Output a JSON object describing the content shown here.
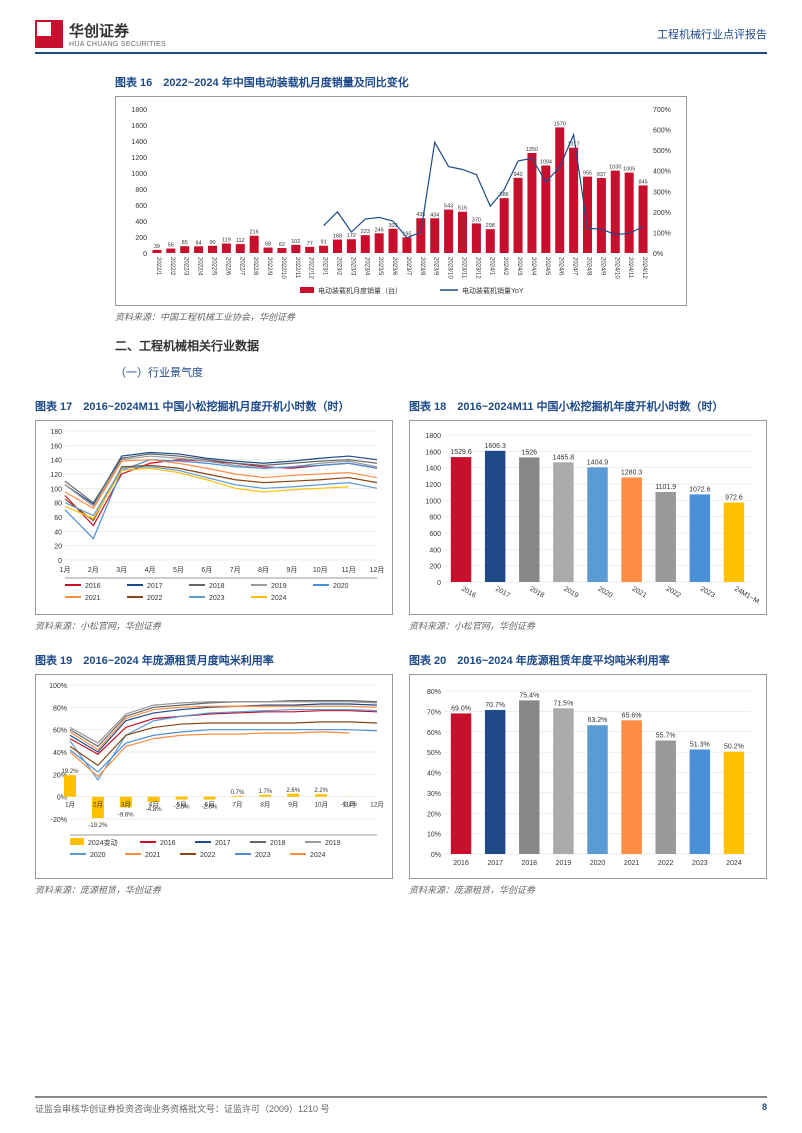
{
  "header": {
    "logo_cn": "华创证券",
    "logo_en": "HUA CHUANG SECURITIES",
    "right": "工程机械行业点评报告"
  },
  "chart16": {
    "title": "图表 16　2022~2024 年中国电动装载机月度销量及同比变化",
    "type": "bar+line",
    "categories": [
      "2022/1",
      "2022/2",
      "2022/3",
      "2022/4",
      "2022/5",
      "2022/6",
      "2022/7",
      "2022/8",
      "2022/9",
      "2022/10",
      "2022/11",
      "2022/12",
      "2023/1",
      "2023/2",
      "2023/3",
      "2023/4",
      "2023/5",
      "2023/6",
      "2023/7",
      "2023/8",
      "2023/9",
      "2023/10",
      "2023/11",
      "2023/12",
      "2024/1",
      "2024/2",
      "2024/3",
      "2024/4",
      "2024/5",
      "2024/6",
      "2024/7",
      "2024/8",
      "2024/9",
      "2024/10",
      "2024/11",
      "2024/12"
    ],
    "bars": [
      39,
      56,
      85,
      84,
      90,
      119,
      112,
      216,
      68,
      62,
      102,
      77,
      91,
      168,
      172,
      223,
      246,
      303,
      195,
      435,
      434,
      543,
      516,
      370,
      298,
      686,
      940,
      1250,
      1094,
      1570,
      1317,
      955,
      937,
      1030,
      1005,
      845
    ],
    "line": [
      0,
      0,
      0,
      0,
      0,
      0,
      0,
      0,
      0,
      0,
      0,
      0,
      133,
      200,
      102,
      165,
      173,
      155,
      74,
      101,
      538,
      420,
      406,
      381,
      227,
      308,
      447,
      461,
      345,
      418,
      575,
      120,
      116,
      90,
      95,
      128
    ],
    "bar_color": "#c8102e",
    "line_color": "#1e4a8a",
    "ylim_left": [
      0,
      1800
    ],
    "ytick_left": 200,
    "ylim_right": [
      0,
      700
    ],
    "ytick_right": 100,
    "legend": [
      "电动装载机月度销量（台）",
      "电动装载机销量YoY"
    ],
    "legend_colors": [
      "#c8102e",
      "#1e4a8a"
    ],
    "tick_fontsize": 6,
    "label_fontsize": 7,
    "source": "资料来源：中国工程机械工业协会，华创证券"
  },
  "section2": "二、工程机械相关行业数据",
  "subsection21": "（一）行业景气度",
  "chart17": {
    "title": "图表 17　2016~2024M11 中国小松挖掘机月度开机小时数（时）",
    "type": "line",
    "categories": [
      "1月",
      "2月",
      "3月",
      "4月",
      "5月",
      "6月",
      "7月",
      "8月",
      "9月",
      "10月",
      "11月",
      "12月"
    ],
    "series": {
      "2016": [
        90,
        48,
        120,
        135,
        140,
        138,
        135,
        130,
        128,
        132,
        135,
        128
      ],
      "2017": [
        105,
        78,
        145,
        150,
        148,
        142,
        138,
        135,
        138,
        142,
        145,
        140
      ],
      "2018": [
        110,
        80,
        142,
        148,
        145,
        140,
        135,
        132,
        135,
        138,
        140,
        135
      ],
      "2019": [
        105,
        75,
        140,
        145,
        142,
        138,
        132,
        128,
        130,
        135,
        138,
        130
      ],
      "2020": [
        70,
        30,
        125,
        140,
        138,
        135,
        130,
        128,
        130,
        132,
        135,
        128
      ],
      "2021": [
        95,
        72,
        138,
        140,
        135,
        128,
        120,
        115,
        118,
        120,
        122,
        115
      ],
      "2022": [
        85,
        55,
        130,
        132,
        128,
        120,
        112,
        108,
        110,
        112,
        115,
        108
      ],
      "2023": [
        80,
        62,
        128,
        130,
        125,
        115,
        105,
        100,
        102,
        105,
        108,
        100
      ],
      "2024": [
        75,
        58,
        125,
        128,
        122,
        112,
        100,
        95,
        98,
        100,
        102,
        null
      ]
    },
    "colors": {
      "2016": "#c8102e",
      "2017": "#1e4a8a",
      "2018": "#666",
      "2019": "#999",
      "2020": "#4a90d9",
      "2021": "#ff8c42",
      "2022": "#8b4513",
      "2023": "#5b9bd5",
      "2024": "#ffc000"
    },
    "ylim": [
      0,
      180
    ],
    "ytick": 20,
    "source": "资料来源：小松官网，华创证券"
  },
  "chart18": {
    "title": "图表 18　2016~2024M11 中国小松挖掘机年度开机小时数（时）",
    "type": "bar",
    "categories": [
      "2016",
      "2017",
      "2018",
      "2019",
      "2020",
      "2021",
      "2022",
      "2023",
      "24M1~M11"
    ],
    "values": [
      1529.6,
      1606.3,
      1526.0,
      1465.8,
      1404.9,
      1280.3,
      1101.9,
      1072.6,
      972.6
    ],
    "colors": [
      "#c8102e",
      "#1e4a8a",
      "#888",
      "#aaa",
      "#5b9bd5",
      "#ff8c42",
      "#999",
      "#4a90d9",
      "#ffc000"
    ],
    "ylim": [
      0,
      1800
    ],
    "ytick": 200,
    "source": "资料来源：小松官网，华创证券"
  },
  "chart19": {
    "title": "图表 19　2016~2024 年庞源租赁月度吨米利用率",
    "type": "line+bar",
    "categories": [
      "1月",
      "2月",
      "3月",
      "4月",
      "5月",
      "6月",
      "7月",
      "8月",
      "9月",
      "10月",
      "11月",
      "12月"
    ],
    "series": {
      "2016": [
        52,
        38,
        62,
        70,
        72,
        74,
        75,
        76,
        76,
        77,
        77,
        76
      ],
      "2017": [
        55,
        40,
        68,
        75,
        78,
        80,
        81,
        82,
        82,
        83,
        83,
        82
      ],
      "2018": [
        60,
        45,
        72,
        80,
        82,
        84,
        85,
        85,
        86,
        86,
        86,
        85
      ],
      "2019": [
        62,
        48,
        74,
        82,
        84,
        85,
        85,
        85,
        85,
        85,
        85,
        84
      ],
      "2020": [
        50,
        15,
        55,
        68,
        72,
        75,
        76,
        77,
        78,
        78,
        78,
        77
      ],
      "2021": [
        58,
        42,
        70,
        78,
        80,
        81,
        81,
        81,
        81,
        81,
        81,
        80
      ],
      "2022": [
        45,
        28,
        55,
        62,
        65,
        66,
        66,
        66,
        66,
        67,
        67,
        66
      ],
      "2023": [
        42,
        22,
        48,
        55,
        58,
        60,
        60,
        60,
        60,
        60,
        60,
        59
      ],
      "2024": [
        40,
        18,
        45,
        52,
        55,
        56,
        56,
        57,
        57,
        58,
        57,
        null
      ]
    },
    "bar2024": [
      19.2,
      -19.2,
      -9.6,
      -4.8,
      -2.5,
      -2.6,
      0.7,
      1.7,
      2.6,
      2.2,
      -0.1,
      null
    ],
    "bar_color": "#ffc000",
    "colors": {
      "2016": "#c8102e",
      "2017": "#1e4a8a",
      "2018": "#666",
      "2019": "#999",
      "2020": "#5b9bd5",
      "2021": "#ff8c42",
      "2022": "#8b4513",
      "2023": "#4a90d9",
      "2024": "#ff8c42"
    },
    "ylim": [
      -20,
      100
    ],
    "ytick": 20,
    "legend": [
      "2024变动",
      "2016",
      "2017",
      "2018",
      "2019",
      "2020",
      "2021",
      "2022",
      "2023",
      "2024"
    ],
    "source": "资料来源：庞源租赁，华创证券"
  },
  "chart20": {
    "title": "图表 20　2016~2024 年庞源租赁年度平均吨米利用率",
    "type": "bar",
    "categories": [
      "2016",
      "2017",
      "2018",
      "2019",
      "2020",
      "2021",
      "2022",
      "2023",
      "2024"
    ],
    "values": [
      69.0,
      70.7,
      75.4,
      71.5,
      63.2,
      65.6,
      55.7,
      51.3,
      50.2
    ],
    "labels": [
      "69.0%",
      "70.7%",
      "75.4%",
      "71.5%",
      "63.2%",
      "65.6%",
      "55.7%",
      "51.3%",
      "50.2%"
    ],
    "colors": [
      "#c8102e",
      "#1e4a8a",
      "#888",
      "#aaa",
      "#5b9bd5",
      "#ff8c42",
      "#999",
      "#4a90d9",
      "#ffc000"
    ],
    "ylim": [
      0,
      80
    ],
    "ytick": 10,
    "source": "资料来源：庞源租赁，华创证券"
  },
  "footer": {
    "left": "证监会审核华创证券投资咨询业务资格批文号：证监许可（2009）1210 号",
    "page": "8"
  }
}
